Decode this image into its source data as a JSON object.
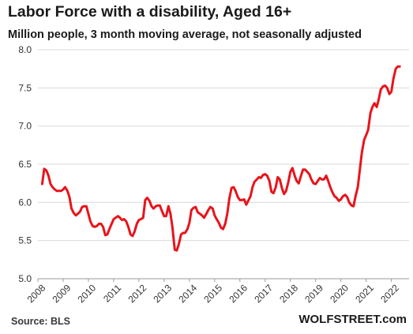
{
  "chart_data": {
    "type": "line",
    "title": "Labor Force with a disability, Aged 16+",
    "subtitle": "Million people, 3 month moving average, not seasonally adjusted",
    "xlabel": "",
    "ylabel": "",
    "ylim": [
      5.0,
      8.0
    ],
    "xlim": [
      2008.0,
      2022.7
    ],
    "y_ticks": [
      "5.0",
      "5.5",
      "6.0",
      "6.5",
      "7.0",
      "7.5",
      "8.0"
    ],
    "x_ticks": [
      "2008",
      "2009",
      "2010",
      "2011",
      "2012",
      "2013",
      "2014",
      "2015",
      "2016",
      "2017",
      "2018",
      "2019",
      "2020",
      "2021",
      "2022"
    ],
    "grid": "horizontal",
    "line_color": "#e8141b",
    "series": [
      {
        "points": [
          [
            2008.17,
            6.24
          ],
          [
            2008.25,
            6.44
          ],
          [
            2008.33,
            6.42
          ],
          [
            2008.42,
            6.35
          ],
          [
            2008.5,
            6.24
          ],
          [
            2008.58,
            6.2
          ],
          [
            2008.67,
            6.17
          ],
          [
            2008.75,
            6.15
          ],
          [
            2008.83,
            6.15
          ],
          [
            2008.92,
            6.15
          ],
          [
            2009.0,
            6.17
          ],
          [
            2009.08,
            6.2
          ],
          [
            2009.17,
            6.15
          ],
          [
            2009.25,
            6.07
          ],
          [
            2009.33,
            5.92
          ],
          [
            2009.42,
            5.86
          ],
          [
            2009.5,
            5.83
          ],
          [
            2009.58,
            5.85
          ],
          [
            2009.67,
            5.88
          ],
          [
            2009.75,
            5.94
          ],
          [
            2009.83,
            5.95
          ],
          [
            2009.92,
            5.95
          ],
          [
            2010.0,
            5.85
          ],
          [
            2010.08,
            5.75
          ],
          [
            2010.17,
            5.69
          ],
          [
            2010.25,
            5.68
          ],
          [
            2010.33,
            5.69
          ],
          [
            2010.42,
            5.72
          ],
          [
            2010.5,
            5.72
          ],
          [
            2010.58,
            5.68
          ],
          [
            2010.67,
            5.57
          ],
          [
            2010.75,
            5.58
          ],
          [
            2010.83,
            5.65
          ],
          [
            2010.92,
            5.72
          ],
          [
            2011.0,
            5.78
          ],
          [
            2011.08,
            5.8
          ],
          [
            2011.17,
            5.82
          ],
          [
            2011.25,
            5.8
          ],
          [
            2011.33,
            5.77
          ],
          [
            2011.42,
            5.78
          ],
          [
            2011.5,
            5.75
          ],
          [
            2011.58,
            5.68
          ],
          [
            2011.67,
            5.58
          ],
          [
            2011.75,
            5.56
          ],
          [
            2011.83,
            5.62
          ],
          [
            2011.92,
            5.72
          ],
          [
            2012.0,
            5.77
          ],
          [
            2012.08,
            5.78
          ],
          [
            2012.17,
            5.8
          ],
          [
            2012.25,
            6.03
          ],
          [
            2012.33,
            6.06
          ],
          [
            2012.42,
            6.02
          ],
          [
            2012.5,
            5.95
          ],
          [
            2012.58,
            5.92
          ],
          [
            2012.67,
            5.95
          ],
          [
            2012.75,
            5.96
          ],
          [
            2012.83,
            5.96
          ],
          [
            2012.92,
            5.88
          ],
          [
            2013.0,
            5.82
          ],
          [
            2013.08,
            5.82
          ],
          [
            2013.17,
            5.95
          ],
          [
            2013.25,
            5.85
          ],
          [
            2013.33,
            5.67
          ],
          [
            2013.42,
            5.38
          ],
          [
            2013.5,
            5.37
          ],
          [
            2013.58,
            5.45
          ],
          [
            2013.67,
            5.58
          ],
          [
            2013.75,
            5.6
          ],
          [
            2013.83,
            5.6
          ],
          [
            2013.92,
            5.65
          ],
          [
            2014.0,
            5.73
          ],
          [
            2014.08,
            5.9
          ],
          [
            2014.17,
            5.93
          ],
          [
            2014.25,
            5.94
          ],
          [
            2014.33,
            5.87
          ],
          [
            2014.42,
            5.85
          ],
          [
            2014.5,
            5.83
          ],
          [
            2014.58,
            5.8
          ],
          [
            2014.67,
            5.85
          ],
          [
            2014.75,
            5.9
          ],
          [
            2014.83,
            5.94
          ],
          [
            2014.92,
            5.92
          ],
          [
            2015.0,
            5.83
          ],
          [
            2015.08,
            5.78
          ],
          [
            2015.17,
            5.73
          ],
          [
            2015.25,
            5.67
          ],
          [
            2015.33,
            5.65
          ],
          [
            2015.42,
            5.72
          ],
          [
            2015.5,
            5.85
          ],
          [
            2015.58,
            6.05
          ],
          [
            2015.67,
            6.19
          ],
          [
            2015.75,
            6.2
          ],
          [
            2015.83,
            6.15
          ],
          [
            2015.92,
            6.07
          ],
          [
            2016.0,
            6.03
          ],
          [
            2016.08,
            6.03
          ],
          [
            2016.17,
            6.04
          ],
          [
            2016.25,
            5.97
          ],
          [
            2016.33,
            6.02
          ],
          [
            2016.42,
            6.08
          ],
          [
            2016.5,
            6.2
          ],
          [
            2016.58,
            6.27
          ],
          [
            2016.67,
            6.3
          ],
          [
            2016.75,
            6.33
          ],
          [
            2016.83,
            6.32
          ],
          [
            2016.92,
            6.36
          ],
          [
            2017.0,
            6.37
          ],
          [
            2017.08,
            6.35
          ],
          [
            2017.17,
            6.28
          ],
          [
            2017.25,
            6.14
          ],
          [
            2017.33,
            6.12
          ],
          [
            2017.42,
            6.2
          ],
          [
            2017.5,
            6.33
          ],
          [
            2017.58,
            6.3
          ],
          [
            2017.67,
            6.18
          ],
          [
            2017.75,
            6.11
          ],
          [
            2017.83,
            6.15
          ],
          [
            2017.92,
            6.27
          ],
          [
            2018.0,
            6.4
          ],
          [
            2018.08,
            6.45
          ],
          [
            2018.17,
            6.35
          ],
          [
            2018.25,
            6.28
          ],
          [
            2018.33,
            6.25
          ],
          [
            2018.42,
            6.35
          ],
          [
            2018.5,
            6.43
          ],
          [
            2018.58,
            6.43
          ],
          [
            2018.67,
            6.4
          ],
          [
            2018.75,
            6.37
          ],
          [
            2018.83,
            6.3
          ],
          [
            2018.92,
            6.25
          ],
          [
            2019.0,
            6.24
          ],
          [
            2019.08,
            6.28
          ],
          [
            2019.17,
            6.32
          ],
          [
            2019.25,
            6.3
          ],
          [
            2019.33,
            6.3
          ],
          [
            2019.42,
            6.35
          ],
          [
            2019.5,
            6.28
          ],
          [
            2019.58,
            6.2
          ],
          [
            2019.67,
            6.13
          ],
          [
            2019.75,
            6.08
          ],
          [
            2019.83,
            6.06
          ],
          [
            2019.92,
            6.02
          ],
          [
            2020.0,
            6.04
          ],
          [
            2020.08,
            6.08
          ],
          [
            2020.17,
            6.1
          ],
          [
            2020.25,
            6.07
          ],
          [
            2020.33,
            6.0
          ],
          [
            2020.42,
            5.96
          ],
          [
            2020.5,
            5.95
          ],
          [
            2020.58,
            6.08
          ],
          [
            2020.67,
            6.2
          ],
          [
            2020.75,
            6.43
          ],
          [
            2020.83,
            6.65
          ],
          [
            2020.92,
            6.82
          ],
          [
            2021.0,
            6.88
          ],
          [
            2021.08,
            6.95
          ],
          [
            2021.17,
            7.17
          ],
          [
            2021.25,
            7.25
          ],
          [
            2021.33,
            7.3
          ],
          [
            2021.42,
            7.25
          ],
          [
            2021.5,
            7.35
          ],
          [
            2021.58,
            7.48
          ],
          [
            2021.67,
            7.52
          ],
          [
            2021.75,
            7.53
          ],
          [
            2021.83,
            7.5
          ],
          [
            2021.92,
            7.42
          ],
          [
            2022.0,
            7.45
          ],
          [
            2022.08,
            7.62
          ],
          [
            2022.17,
            7.75
          ],
          [
            2022.25,
            7.78
          ],
          [
            2022.33,
            7.78
          ]
        ]
      }
    ]
  },
  "footer": {
    "source": "Source: BLS",
    "brand": "WOLFSTREET.com"
  }
}
